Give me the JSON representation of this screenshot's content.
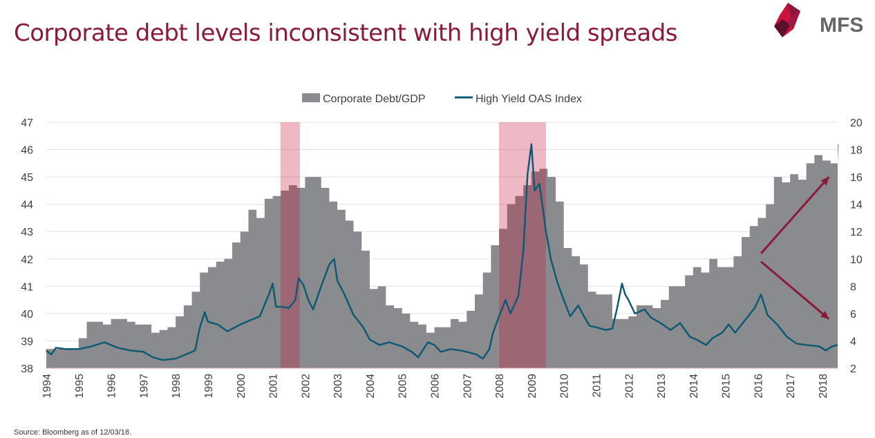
{
  "title": "Corporate debt levels inconsistent with high yield spreads",
  "logo_text": "MFS",
  "source": "Source: Bloomberg as of 12/03/18.",
  "chart_data": {
    "type": "area+line",
    "title": "",
    "legend_position": "top-center",
    "grid": true,
    "colors": {
      "area": "#8a8b8f",
      "line": "#0e5a73",
      "recession": "#c8143c",
      "arrow": "#8b1a3a",
      "title": "#8b1a3a"
    },
    "x_ticks": [
      "1994",
      "1995",
      "1996",
      "1997",
      "1998",
      "1999",
      "2000",
      "2001",
      "2002",
      "2003",
      "2004",
      "2005",
      "2006",
      "2007",
      "2008",
      "2009",
      "2010",
      "2011",
      "2012",
      "2013",
      "2014",
      "2015",
      "2016",
      "2017",
      "2018"
    ],
    "xlim": [
      1994,
      2018.47
    ],
    "y_left": {
      "ticks": [
        "38",
        "39",
        "40",
        "41",
        "42",
        "43",
        "44",
        "45",
        "46",
        "47"
      ],
      "range": [
        38,
        47
      ]
    },
    "y_right": {
      "ticks": [
        "2",
        "4",
        "6",
        "8",
        "10",
        "12",
        "14",
        "16",
        "18",
        "20"
      ],
      "range": [
        2,
        20
      ]
    },
    "shaded_periods": [
      [
        2001.24,
        2001.84
      ],
      [
        2008.0,
        2009.45
      ]
    ],
    "series": [
      {
        "name": "Corporate Debt/GDP",
        "kind": "area-step",
        "axis": "left",
        "x_start": 1994.0,
        "x_step": 0.25,
        "values": [
          38.7,
          38.7,
          38.7,
          38.7,
          39.1,
          39.7,
          39.7,
          39.6,
          39.8,
          39.8,
          39.7,
          39.6,
          39.6,
          39.3,
          39.4,
          39.5,
          39.9,
          40.3,
          40.8,
          41.5,
          41.7,
          41.9,
          42.0,
          42.6,
          43.0,
          43.8,
          43.5,
          44.2,
          44.3,
          44.5,
          44.7,
          44.6,
          45.0,
          45.0,
          44.6,
          44.1,
          43.8,
          43.4,
          43.0,
          42.3,
          40.9,
          41.0,
          40.3,
          40.2,
          40.0,
          39.7,
          39.6,
          39.3,
          39.5,
          39.5,
          39.8,
          39.7,
          40.1,
          40.7,
          41.5,
          42.5,
          43.1,
          44.0,
          44.3,
          44.7,
          45.2,
          45.3,
          45.0,
          44.1,
          42.4,
          42.1,
          41.8,
          40.8,
          40.7,
          40.7,
          39.8,
          39.8,
          39.9,
          40.3,
          40.3,
          40.2,
          40.5,
          41.0,
          41.0,
          41.4,
          41.7,
          41.5,
          42.0,
          41.7,
          41.7,
          42.1,
          42.8,
          43.2,
          43.5,
          44.0,
          45.0,
          44.8,
          45.1,
          44.9,
          45.5,
          45.8,
          45.6,
          45.5,
          46.2
        ]
      },
      {
        "name": "High Yield OAS Index",
        "kind": "line",
        "axis": "right",
        "points": [
          [
            1994.0,
            3.3
          ],
          [
            1994.15,
            3.0
          ],
          [
            1994.3,
            3.5
          ],
          [
            1994.6,
            3.4
          ],
          [
            1995.0,
            3.4
          ],
          [
            1995.4,
            3.6
          ],
          [
            1995.8,
            3.9
          ],
          [
            1996.2,
            3.5
          ],
          [
            1996.6,
            3.3
          ],
          [
            1997.0,
            3.2
          ],
          [
            1997.3,
            2.8
          ],
          [
            1997.6,
            2.6
          ],
          [
            1998.0,
            2.7
          ],
          [
            1998.3,
            3.0
          ],
          [
            1998.6,
            3.3
          ],
          [
            1998.75,
            5.0
          ],
          [
            1998.9,
            6.1
          ],
          [
            1999.0,
            5.4
          ],
          [
            1999.3,
            5.2
          ],
          [
            1999.6,
            4.7
          ],
          [
            2000.0,
            5.2
          ],
          [
            2000.3,
            5.5
          ],
          [
            2000.6,
            5.8
          ],
          [
            2000.9,
            7.5
          ],
          [
            2001.0,
            8.2
          ],
          [
            2001.1,
            6.5
          ],
          [
            2001.3,
            6.5
          ],
          [
            2001.5,
            6.4
          ],
          [
            2001.7,
            7.0
          ],
          [
            2001.8,
            8.6
          ],
          [
            2001.95,
            8.1
          ],
          [
            2002.1,
            7.0
          ],
          [
            2002.25,
            6.3
          ],
          [
            2002.5,
            8.0
          ],
          [
            2002.75,
            9.6
          ],
          [
            2002.9,
            10.0
          ],
          [
            2003.0,
            8.4
          ],
          [
            2003.2,
            7.5
          ],
          [
            2003.5,
            5.9
          ],
          [
            2003.8,
            5.0
          ],
          [
            2004.0,
            4.1
          ],
          [
            2004.3,
            3.7
          ],
          [
            2004.6,
            3.9
          ],
          [
            2005.0,
            3.6
          ],
          [
            2005.3,
            3.2
          ],
          [
            2005.5,
            2.8
          ],
          [
            2005.8,
            3.9
          ],
          [
            2006.0,
            3.7
          ],
          [
            2006.2,
            3.2
          ],
          [
            2006.5,
            3.4
          ],
          [
            2006.8,
            3.3
          ],
          [
            2007.0,
            3.2
          ],
          [
            2007.3,
            3.0
          ],
          [
            2007.5,
            2.7
          ],
          [
            2007.7,
            3.4
          ],
          [
            2007.8,
            4.5
          ],
          [
            2008.0,
            5.8
          ],
          [
            2008.2,
            7.0
          ],
          [
            2008.35,
            6.0
          ],
          [
            2008.6,
            7.3
          ],
          [
            2008.75,
            10.6
          ],
          [
            2008.88,
            16.2
          ],
          [
            2009.0,
            18.4
          ],
          [
            2009.1,
            15.0
          ],
          [
            2009.25,
            15.5
          ],
          [
            2009.45,
            12.0
          ],
          [
            2009.6,
            10.0
          ],
          [
            2009.8,
            8.3
          ],
          [
            2010.0,
            7.0
          ],
          [
            2010.2,
            5.8
          ],
          [
            2010.45,
            6.6
          ],
          [
            2010.6,
            5.9
          ],
          [
            2010.8,
            5.1
          ],
          [
            2011.0,
            5.0
          ],
          [
            2011.3,
            4.8
          ],
          [
            2011.5,
            4.9
          ],
          [
            2011.65,
            6.4
          ],
          [
            2011.8,
            8.2
          ],
          [
            2011.9,
            7.4
          ],
          [
            2012.0,
            7.0
          ],
          [
            2012.2,
            6.0
          ],
          [
            2012.5,
            6.3
          ],
          [
            2012.7,
            5.7
          ],
          [
            2013.0,
            5.3
          ],
          [
            2013.3,
            4.8
          ],
          [
            2013.6,
            5.3
          ],
          [
            2013.9,
            4.3
          ],
          [
            2014.1,
            4.1
          ],
          [
            2014.4,
            3.7
          ],
          [
            2014.6,
            4.2
          ],
          [
            2014.9,
            4.6
          ],
          [
            2015.1,
            5.2
          ],
          [
            2015.3,
            4.6
          ],
          [
            2015.6,
            5.5
          ],
          [
            2015.9,
            6.4
          ],
          [
            2016.1,
            7.4
          ],
          [
            2016.3,
            5.9
          ],
          [
            2016.6,
            5.2
          ],
          [
            2016.9,
            4.3
          ],
          [
            2017.2,
            3.8
          ],
          [
            2017.5,
            3.7
          ],
          [
            2017.9,
            3.6
          ],
          [
            2018.1,
            3.3
          ],
          [
            2018.3,
            3.6
          ],
          [
            2018.47,
            3.7
          ]
        ]
      }
    ],
    "annotations": [
      {
        "type": "arrow",
        "from": [
          2016.1,
          42.2
        ],
        "to": [
          2018.2,
          45.0
        ]
      },
      {
        "type": "arrow",
        "from": [
          2016.1,
          41.9
        ],
        "to": [
          2018.2,
          39.8
        ]
      }
    ]
  }
}
